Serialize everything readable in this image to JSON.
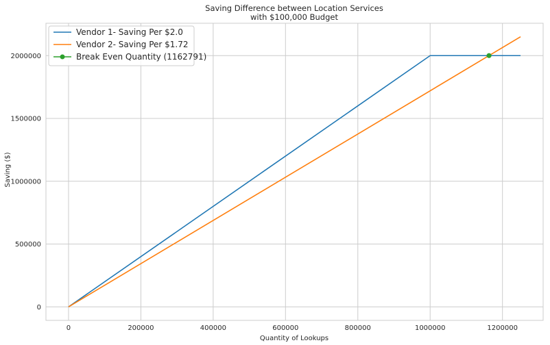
{
  "chart_data": {
    "type": "line",
    "title": "Saving Difference between Location Services",
    "subtitle": "with $100,000 Budget",
    "xlabel": "Quantity of Lookups",
    "ylabel": "Saving ($)",
    "xlim": [
      -62500,
      1312500
    ],
    "ylim": [
      -107500,
      2257500
    ],
    "x_ticks": [
      0,
      200000,
      400000,
      600000,
      800000,
      1000000,
      1200000
    ],
    "x_tick_labels": [
      "0",
      "200000",
      "400000",
      "600000",
      "800000",
      "1000000",
      "1200000"
    ],
    "y_ticks": [
      0,
      500000,
      1000000,
      1500000,
      2000000
    ],
    "y_tick_labels": [
      "0",
      "500000",
      "1000000",
      "1500000",
      "2000000"
    ],
    "grid": true,
    "legend_position": "top-left",
    "series": [
      {
        "name": "Vendor 1- Saving Per $2.0",
        "color": "#1f77b4",
        "marker": "none",
        "x": [
          0,
          1000000,
          1250000
        ],
        "y": [
          0,
          2000000,
          2000000
        ]
      },
      {
        "name": "Vendor 2- Saving Per $1.72",
        "color": "#ff7f0e",
        "marker": "none",
        "x": [
          0,
          1250000
        ],
        "y": [
          0,
          2150000
        ]
      },
      {
        "name": "Break Even Quantity (1162791)",
        "color": "#2ca02c",
        "marker": "circle",
        "x": [
          1162791
        ],
        "y": [
          2000000
        ]
      }
    ]
  }
}
